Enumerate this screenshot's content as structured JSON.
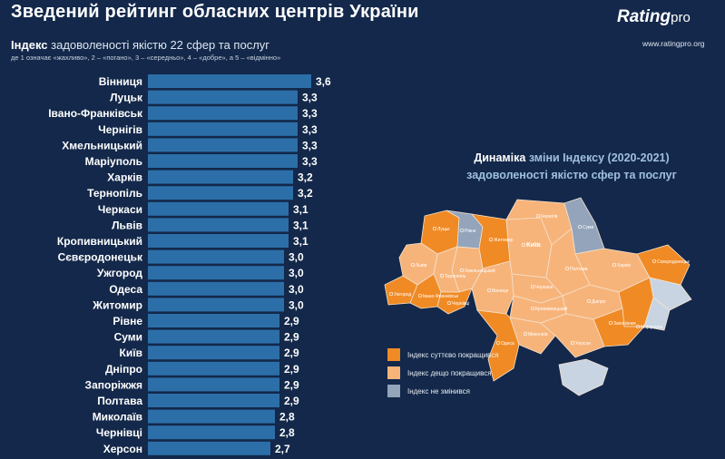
{
  "header": {
    "title": "Зведений рейтинг обласних центрів України",
    "brand_main": "Rating",
    "brand_suffix": "pro",
    "brand_url": "www.ratingpro.org"
  },
  "index_block": {
    "title_bold": "Індекс",
    "title_rest": " задоволеності якістю 22 сфер та послуг",
    "note": "де 1 означає «жахливо», 2 – «погано», 3 – «середньо», 4 – «добре», а 5 – «відмінно»"
  },
  "chart_data": {
    "type": "bar",
    "orientation": "horizontal",
    "categories": [
      "Вінниця",
      "Луцьк",
      "Івано-Франківськ",
      "Чернігів",
      "Хмельницький",
      "Маріуполь",
      "Харків",
      "Тернопіль",
      "Черкаси",
      "Львів",
      "Кропивницький",
      "Сєвєродонецьк",
      "Ужгород",
      "Одеса",
      "Житомир",
      "Рівне",
      "Суми",
      "Київ",
      "Дніпро",
      "Запоріжжя",
      "Полтава",
      "Миколаїв",
      "Чернівці",
      "Херсон"
    ],
    "values": [
      3.6,
      3.3,
      3.3,
      3.3,
      3.3,
      3.3,
      3.2,
      3.2,
      3.1,
      3.1,
      3.1,
      3.0,
      3.0,
      3.0,
      3.0,
      2.9,
      2.9,
      2.9,
      2.9,
      2.9,
      2.9,
      2.8,
      2.8,
      2.7
    ],
    "value_labels": [
      "3,6",
      "3,3",
      "3,3",
      "3,3",
      "3,3",
      "3,3",
      "3,2",
      "3,2",
      "3,1",
      "3,1",
      "3,1",
      "3,0",
      "3,0",
      "3,0",
      "3,0",
      "2,9",
      "2,9",
      "2,9",
      "2,9",
      "2,9",
      "2,9",
      "2,8",
      "2,8",
      "2,7"
    ],
    "bar_color": "#2c6fa8"
  },
  "dynamics": {
    "title_bold": "Динаміка",
    "title_highlight": " зміни Індексу (2020-2021)",
    "title_line2": "задоволеності якістю сфер та послуг"
  },
  "map": {
    "colors": {
      "improved_significantly": "#f08a24",
      "improved_slightly": "#f7b47a",
      "unchanged": "#93a4bb",
      "occupied": "#c9d4e3"
    },
    "city_labels": [
      "Луцьк",
      "Рівне",
      "Житомир",
      "Київ",
      "Чернігів",
      "Суми",
      "Харків",
      "Полтава",
      "Черкаси",
      "Вінниця",
      "Хмельницький",
      "Тернопіль",
      "Львів",
      "Ужгород",
      "Івано-Франківськ",
      "Чернівці",
      "Кропивницький",
      "Дніпро",
      "Запоріжжя",
      "Сєвєродонецьк",
      "Маріуполь",
      "Миколаїв",
      "Одеса",
      "Херсон"
    ]
  },
  "legend": [
    {
      "label": "Індекс суттєво покращився",
      "color": "#f08a24"
    },
    {
      "label": "Індекс дещо покращився",
      "color": "#f7b47a"
    },
    {
      "label": "Індекс не змінився",
      "color": "#93a4bb"
    }
  ]
}
